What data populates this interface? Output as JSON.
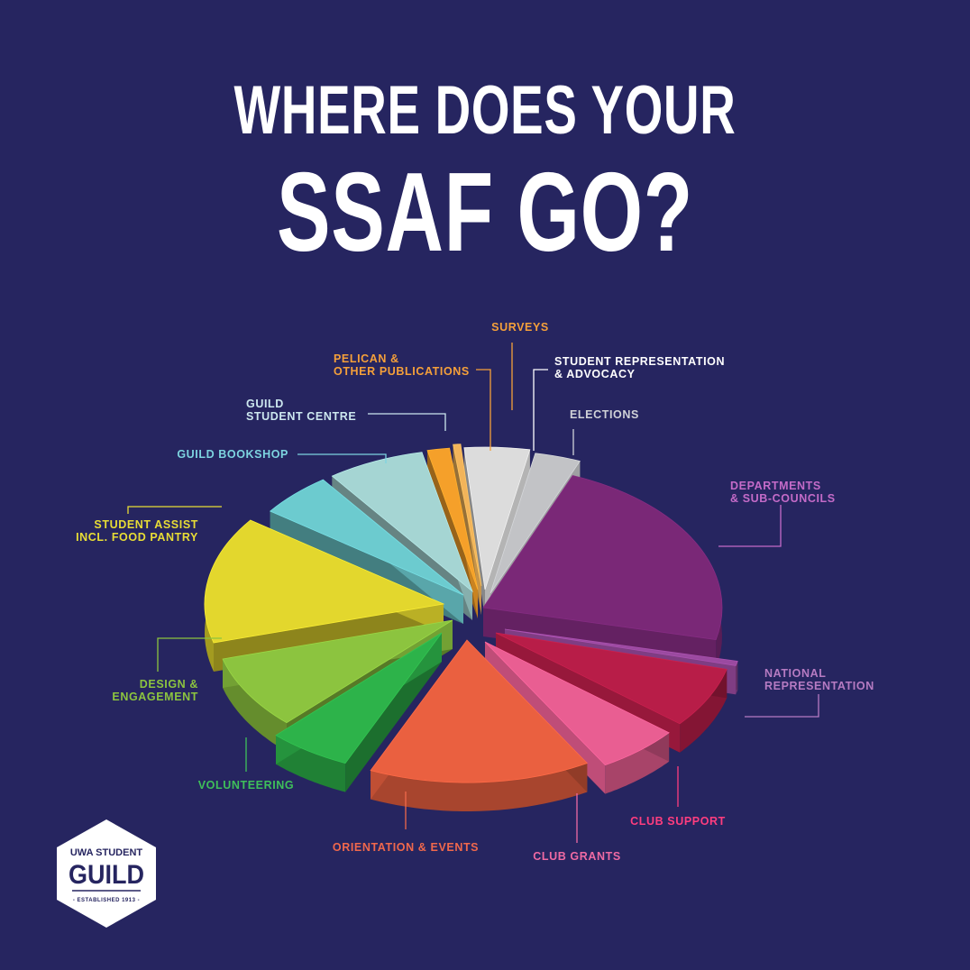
{
  "title": {
    "line1": "WHERE DOES YOUR",
    "line2": "SSAF GO?"
  },
  "logo": {
    "top": "UWA STUDENT",
    "main": "GUILD",
    "sub": "- ESTABLISHED 1913 -"
  },
  "colors": {
    "background": "#262560",
    "logo_text": "#262560"
  },
  "chart_data": {
    "type": "pie",
    "title": "WHERE DOES YOUR SSAF GO?",
    "values_note": "Slice sizes are not printed; values below are approximate shares (%) estimated from the exploded 3D pie.",
    "slices": [
      {
        "label": "DEPARTMENTS & SUB-COUNCILS",
        "value": 22.5,
        "color": "#7a2877",
        "label_color": "#c46bc8"
      },
      {
        "label": "NATIONAL REPRESENTATION",
        "value": 0.5,
        "color": "#9b4aa0",
        "label_color": "#b67bc2"
      },
      {
        "label": "CLUB SUPPORT",
        "value": 6.9,
        "color": "#b81d48",
        "label_color": "#ff3d7f"
      },
      {
        "label": "CLUB GRANTS",
        "value": 5.6,
        "color": "#e95e92",
        "label_color": "#ef6aa3"
      },
      {
        "label": "ORIENTATION & EVENTS",
        "value": 15.0,
        "color": "#ea6040",
        "label_color": "#f0684c"
      },
      {
        "label": "VOLUNTEERING",
        "value": 5.6,
        "color": "#2db34a",
        "label_color": "#3fc05a"
      },
      {
        "label": "DESIGN & ENGAGEMENT",
        "value": 8.4,
        "color": "#8cc43f",
        "label_color": "#8cc43f"
      },
      {
        "label": "STUDENT ASSIST INCL. FOOD PANTRY",
        "value": 14.4,
        "color": "#e3d72d",
        "label_color": "#e8dd35"
      },
      {
        "label": "GUILD BOOKSHOP",
        "value": 5.0,
        "color": "#6ccbcf",
        "label_color": "#7dd4e0"
      },
      {
        "label": "GUILD STUDENT CENTRE",
        "value": 6.6,
        "color": "#a5d5d3",
        "label_color": "#cde8ef"
      },
      {
        "label": "PELICAN & OTHER PUBLICATIONS",
        "value": 1.5,
        "color": "#f5a02a",
        "label_color": "#f5a03a"
      },
      {
        "label": "SURVEYS",
        "value": 0.5,
        "color": "#f2b45a",
        "label_color": "#f5a03a"
      },
      {
        "label": "STUDENT REPRESENTATION & ADVOCACY",
        "value": 4.4,
        "color": "#dcdcdc",
        "label_color": "#ffffff"
      },
      {
        "label": "ELECTIONS",
        "value": 3.1,
        "color": "#c2c3c6",
        "label_color": "#d0d2d8"
      }
    ]
  }
}
